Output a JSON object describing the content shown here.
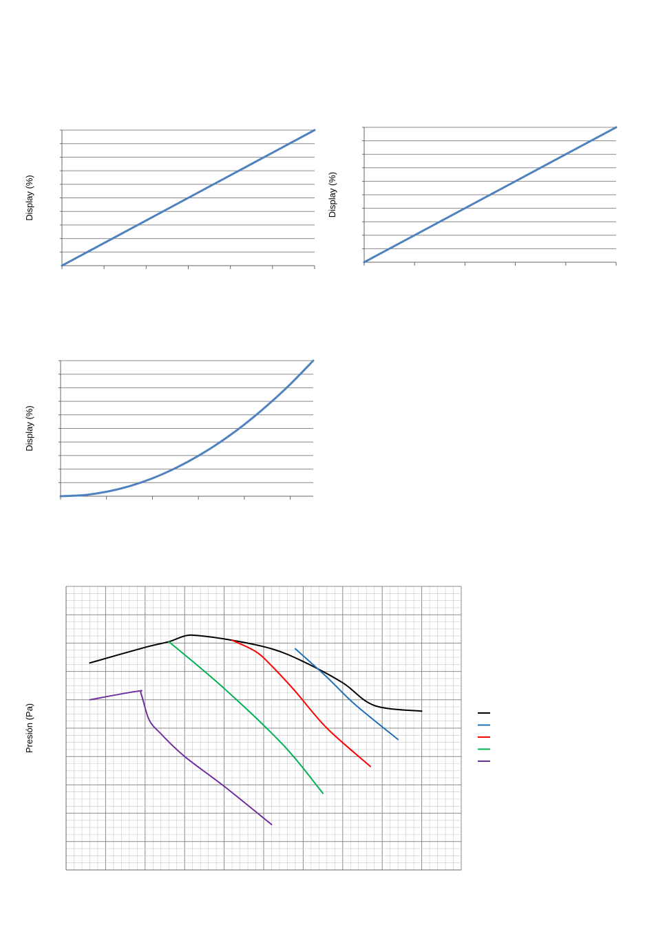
{
  "colors": {
    "grid": "#888888",
    "minor_grid": "#c8c8c8",
    "axis": "#666666",
    "blue_line": "#4f81bd"
  },
  "chart_data": [
    {
      "type": "line",
      "title": "",
      "xlabel": "",
      "ylabel": "Display (%)",
      "xlim": [
        0,
        6
      ],
      "ylim": [
        0,
        10
      ],
      "grid": true,
      "series": [
        {
          "x": [
            0,
            6
          ],
          "y": [
            0,
            10
          ],
          "color": "#4f81bd"
        }
      ]
    },
    {
      "type": "line",
      "title": "",
      "xlabel": "",
      "ylabel": "Display (%)",
      "xlim": [
        0,
        5
      ],
      "ylim": [
        0,
        10
      ],
      "grid": true,
      "series": [
        {
          "x": [
            0,
            5
          ],
          "y": [
            0,
            10
          ],
          "color": "#4f81bd"
        }
      ]
    },
    {
      "type": "line",
      "title": "",
      "xlabel": "",
      "ylabel": "Display (%)",
      "xlim": [
        0,
        5.5
      ],
      "ylim": [
        0,
        10
      ],
      "grid": true,
      "series": [
        {
          "x": [
            0,
            0.5,
            1,
            1.5,
            2,
            2.5,
            3,
            3.5,
            4,
            4.5,
            5,
            5.5
          ],
          "y": [
            0,
            0.08,
            0.33,
            0.74,
            1.32,
            2.07,
            2.98,
            4.05,
            5.29,
            6.7,
            8.26,
            10.0
          ],
          "color": "#4f81bd"
        }
      ]
    },
    {
      "type": "line",
      "title": "",
      "xlabel": "",
      "ylabel": "Presión (Pa)",
      "xlim": [
        0,
        100
      ],
      "ylim": [
        0,
        100
      ],
      "grid": true,
      "series": [
        {
          "x": [
            6,
            20,
            26,
            30,
            33,
            42,
            52,
            60,
            70,
            78,
            90
          ],
          "y": [
            73,
            78.5,
            80.5,
            82.5,
            82.7,
            81,
            78,
            73.5,
            66,
            58,
            56
          ],
          "color": "#000000"
        },
        {
          "x": [
            58,
            66,
            73,
            84
          ],
          "y": [
            78,
            68,
            58.5,
            46
          ],
          "color": "#1f6fb4"
        },
        {
          "x": [
            42,
            48,
            52,
            58,
            66,
            77
          ],
          "y": [
            81,
            77,
            72,
            63,
            50,
            36.5
          ],
          "color": "#ff0000"
        },
        {
          "x": [
            26,
            40,
            55,
            65
          ],
          "y": [
            80.5,
            64,
            44,
            27
          ],
          "color": "#00b050"
        },
        {
          "x": [
            6,
            18,
            19,
            21,
            24,
            30,
            40,
            52
          ],
          "y": [
            60,
            63,
            62,
            53,
            48,
            40,
            29.5,
            16
          ],
          "color": "#7030a0"
        }
      ]
    }
  ]
}
